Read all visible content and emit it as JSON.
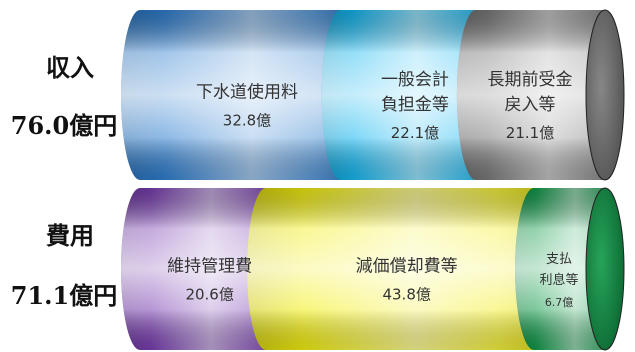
{
  "chart_data": {
    "type": "bar",
    "unit": "億円",
    "rows": [
      {
        "title": "収入",
        "total_label": "76.0億円",
        "total": 76.0,
        "segments": [
          {
            "label_lines": [
              "下水道使用料"
            ],
            "value_label": "32.8億",
            "value": 32.8,
            "color": "#2f7fd0"
          },
          {
            "label_lines": [
              "一般会計",
              "負担金等"
            ],
            "value_label": "22.1億",
            "value": 22.1,
            "color": "#14b7f0"
          },
          {
            "label_lines": [
              "長期前受金",
              "戻入等"
            ],
            "value_label": "21.1億",
            "value": 21.1,
            "color": "#7a7a7a"
          }
        ]
      },
      {
        "title": "費用",
        "total_label": "71.1億円",
        "total": 71.1,
        "segments": [
          {
            "label_lines": [
              "維持管理費"
            ],
            "value_label": "20.6億",
            "value": 20.6,
            "color": "#7a3fb2"
          },
          {
            "label_lines": [
              "減価償却費等"
            ],
            "value_label": "43.8億",
            "value": 43.8,
            "color": "#f2ee10"
          },
          {
            "label_lines": [
              "支払",
              "利息等"
            ],
            "value_label": "6.7億",
            "value": 6.7,
            "color": "#0f9a48"
          }
        ]
      }
    ]
  }
}
